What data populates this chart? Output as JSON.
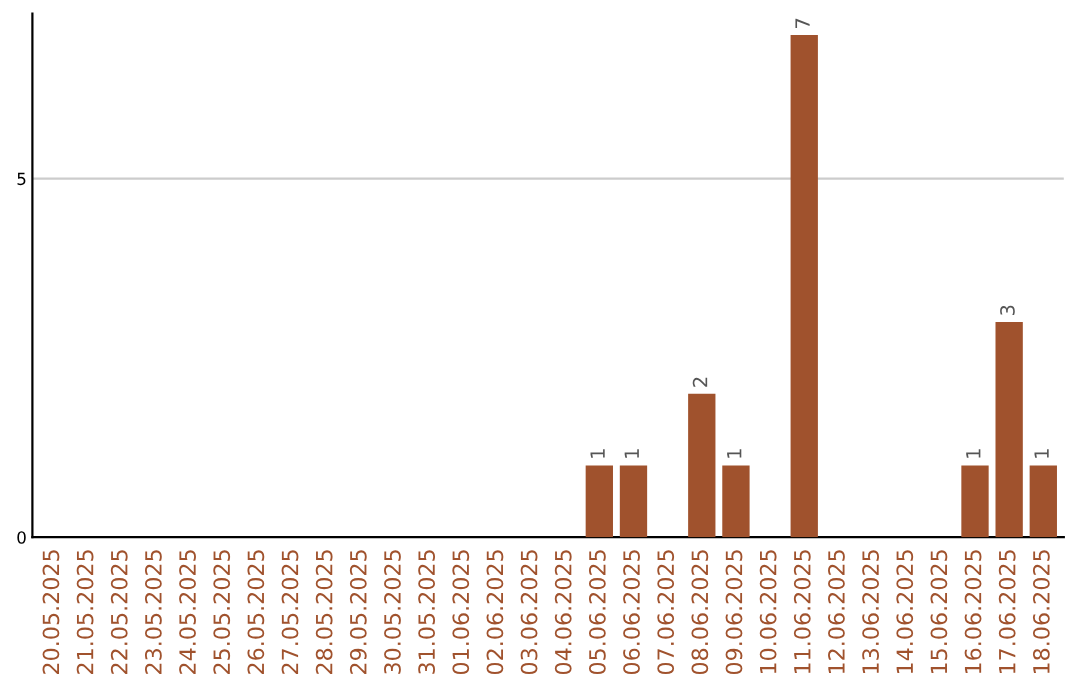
{
  "chart_data": {
    "type": "bar",
    "categories": [
      "20.05.2025",
      "21.05.2025",
      "22.05.2025",
      "23.05.2025",
      "24.05.2025",
      "25.05.2025",
      "26.05.2025",
      "27.05.2025",
      "28.05.2025",
      "29.05.2025",
      "30.05.2025",
      "31.05.2025",
      "01.06.2025",
      "02.06.2025",
      "03.06.2025",
      "04.06.2025",
      "05.06.2025",
      "06.06.2025",
      "07.06.2025",
      "08.06.2025",
      "09.06.2025",
      "10.06.2025",
      "11.06.2025",
      "12.06.2025",
      "13.06.2025",
      "14.06.2025",
      "15.06.2025",
      "16.06.2025",
      "17.06.2025",
      "18.06.2025"
    ],
    "values": [
      0,
      0,
      0,
      0,
      0,
      0,
      0,
      0,
      0,
      0,
      0,
      0,
      0,
      0,
      0,
      0,
      1,
      1,
      0,
      2,
      1,
      0,
      7,
      0,
      0,
      0,
      0,
      1,
      3,
      1
    ],
    "value_labels": [
      null,
      null,
      null,
      null,
      null,
      null,
      null,
      null,
      null,
      null,
      null,
      null,
      null,
      null,
      null,
      null,
      "1",
      "1",
      null,
      "2",
      "1",
      null,
      "7",
      null,
      null,
      null,
      null,
      "1",
      "3",
      "1"
    ],
    "color": "#a0522d",
    "ylim": [
      0,
      7.3
    ],
    "yticks": [
      0,
      5
    ],
    "grid": "y"
  }
}
